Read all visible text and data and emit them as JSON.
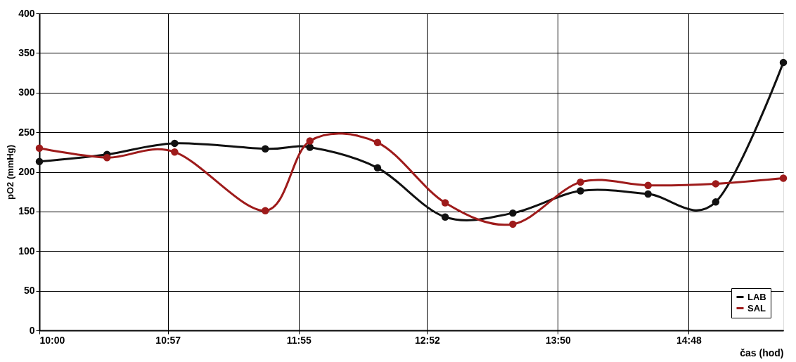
{
  "chart_data": {
    "type": "line",
    "xlabel": "čas (hod)",
    "ylabel": "pO2 (mmHg)",
    "x": [
      10,
      10.5,
      11,
      11.67,
      12,
      12.5,
      13,
      13.5,
      14,
      14.5,
      15,
      15.5
    ],
    "series": [
      {
        "name": "LAB",
        "color": "#111111",
        "values": [
          213,
          222,
          236,
          229,
          231,
          205,
          143,
          148,
          176,
          172,
          162,
          338
        ]
      },
      {
        "name": "SAL",
        "color": "#9e1b1b",
        "values": [
          230,
          218,
          225,
          151,
          239,
          237,
          161,
          134,
          187,
          183,
          185,
          192
        ]
      }
    ],
    "xlim": [
      10,
      15.5
    ],
    "xticks": [
      {
        "value": 10,
        "label": "10:00"
      },
      {
        "value": 10.95,
        "label": "10:57"
      },
      {
        "value": 11.9167,
        "label": "11:55"
      },
      {
        "value": 12.8667,
        "label": "12:52"
      },
      {
        "value": 13.8333,
        "label": "13:50"
      },
      {
        "value": 14.8,
        "label": "14:48"
      }
    ],
    "ylim": [
      0,
      400
    ],
    "yticks": [
      0,
      50,
      100,
      150,
      200,
      250,
      300,
      350,
      400
    ],
    "grid": true,
    "legend": "bottom right",
    "marker": "circle",
    "line_style": "solid"
  }
}
